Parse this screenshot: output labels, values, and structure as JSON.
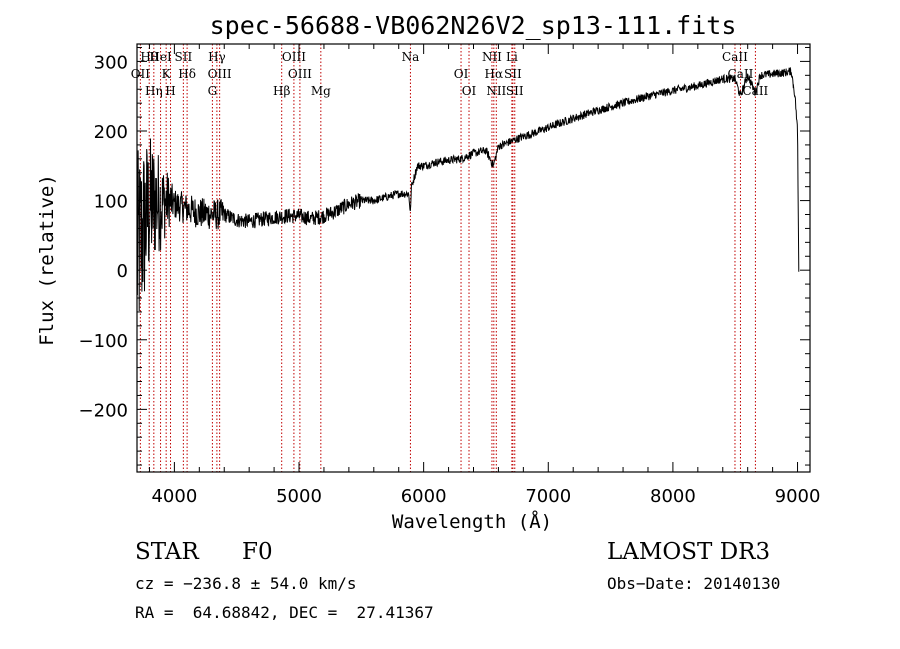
{
  "chart_data": {
    "type": "line",
    "title": "spec-56688-VB062N26V2_sp13-111.fits",
    "xlabel": "Wavelength (Å)",
    "ylabel": "Flux (relative)",
    "xlim": [
      3700,
      9100
    ],
    "ylim": [
      -290,
      325
    ],
    "x_ticks": [
      4000,
      5000,
      6000,
      7000,
      8000,
      9000
    ],
    "x_tick_labels": [
      "4000",
      "5000",
      "6000",
      "7000",
      "8000",
      "9000"
    ],
    "y_ticks": [
      -200,
      -100,
      0,
      100,
      200,
      300
    ],
    "y_tick_labels": [
      "−200",
      "−100",
      "0",
      "100",
      "200",
      "300"
    ],
    "series": [
      {
        "name": "flux",
        "x": [
          3700,
          3750,
          3800,
          3850,
          3900,
          3950,
          4000,
          4100,
          4200,
          4300,
          4400,
          4500,
          4600,
          4700,
          4800,
          4900,
          5000,
          5100,
          5200,
          5300,
          5400,
          5500,
          5600,
          5700,
          5800,
          5880,
          5895,
          5900,
          5950,
          6000,
          6100,
          6200,
          6300,
          6400,
          6500,
          6560,
          6600,
          6700,
          6800,
          6900,
          7000,
          7200,
          7400,
          7600,
          7800,
          8000,
          8200,
          8400,
          8498,
          8542,
          8600,
          8662,
          8700,
          8800,
          8900,
          8950,
          8980,
          9000,
          9010
        ],
        "y": [
          20,
          60,
          90,
          100,
          95,
          100,
          95,
          88,
          82,
          80,
          80,
          72,
          70,
          73,
          76,
          78,
          78,
          74,
          78,
          85,
          95,
          100,
          100,
          105,
          110,
          110,
          80,
          118,
          150,
          150,
          155,
          158,
          160,
          168,
          172,
          150,
          178,
          185,
          192,
          198,
          205,
          218,
          230,
          240,
          250,
          258,
          265,
          275,
          275,
          250,
          280,
          255,
          280,
          282,
          284,
          286,
          250,
          200,
          0
        ]
      }
    ],
    "line_markers": [
      {
        "label": "Hθ",
        "x": 3798
      },
      {
        "label": "OII",
        "x": 3727
      },
      {
        "label": "Hη",
        "x": 3835
      },
      {
        "label": "HeI",
        "x": 3889
      },
      {
        "label": "K",
        "x": 3934
      },
      {
        "label": "H",
        "x": 3969
      },
      {
        "label": "SII",
        "x": 4072
      },
      {
        "label": "Hδ",
        "x": 4102
      },
      {
        "label": "G",
        "x": 4305
      },
      {
        "label": "Hγ",
        "x": 4341
      },
      {
        "label": "OIII",
        "x": 4363
      },
      {
        "label": "Hβ",
        "x": 4861
      },
      {
        "label": "OIII",
        "x": 4959
      },
      {
        "label": "OIII",
        "x": 5007
      },
      {
        "label": "Mg",
        "x": 5175
      },
      {
        "label": "Na",
        "x": 5894
      },
      {
        "label": "OI",
        "x": 6300
      },
      {
        "label": "OI",
        "x": 6364
      },
      {
        "label": "NII",
        "x": 6548
      },
      {
        "label": "Hα",
        "x": 6563
      },
      {
        "label": "NII",
        "x": 6583
      },
      {
        "label": "Li",
        "x": 6708
      },
      {
        "label": "SII",
        "x": 6716
      },
      {
        "label": "SII",
        "x": 6731
      },
      {
        "label": "CaII",
        "x": 8498
      },
      {
        "label": "CaII",
        "x": 8542
      },
      {
        "label": "CaII",
        "x": 8662
      }
    ]
  },
  "info": {
    "class_label": "STAR",
    "subclass_label": "F0",
    "survey_label": "LAMOST DR3",
    "cz_text": "cz = −236.8 ± 54.0 km/s",
    "obsdate_text": "Obs−Date: 20140130",
    "radec_text": "RA =  64.68842, DEC =  27.41367"
  },
  "colors": {
    "marker_line": "#c00000",
    "spectrum": "#000000",
    "axes": "#000000"
  }
}
